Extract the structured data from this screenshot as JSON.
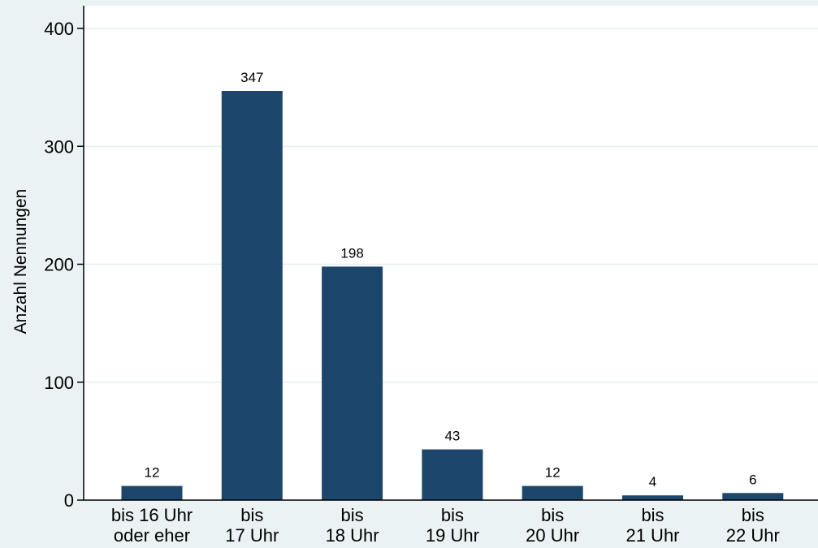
{
  "chart_data": {
    "type": "bar",
    "categories": [
      [
        "bis 16 Uhr",
        "oder eher"
      ],
      [
        "bis",
        "17 Uhr"
      ],
      [
        "bis",
        "18 Uhr"
      ],
      [
        "bis",
        "19 Uhr"
      ],
      [
        "bis",
        "20 Uhr"
      ],
      [
        "bis",
        "21 Uhr"
      ],
      [
        "bis",
        "22 Uhr"
      ]
    ],
    "values": [
      12,
      347,
      198,
      43,
      12,
      4,
      6
    ],
    "data_labels": [
      "12",
      "347",
      "198",
      "43",
      "12",
      "4",
      "6"
    ],
    "title": "",
    "xlabel": "",
    "ylabel": "Anzahl Nennungen",
    "ylim": [
      0,
      420
    ],
    "yticks": [
      0,
      100,
      200,
      300,
      400
    ],
    "ytick_labels": [
      "0",
      "100",
      "200",
      "300",
      "400"
    ],
    "grid": true,
    "colors": {
      "bar": "#1d466c",
      "plot_background": "#ffffff",
      "page_background": "#eaf2f3",
      "grid": "#e6eef0",
      "axis": "#000000"
    }
  }
}
